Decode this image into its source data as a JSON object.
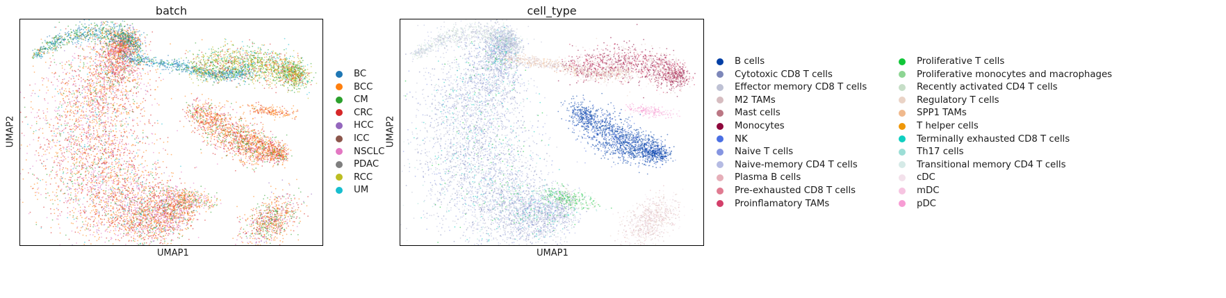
{
  "chart_data": [
    {
      "type": "scatter",
      "title": "batch",
      "xlabel": "UMAP1",
      "ylabel": "UMAP2",
      "grid": false,
      "ticks": false,
      "legend_position": "right",
      "categories": [
        {
          "name": "BC",
          "color": "#1f77b4"
        },
        {
          "name": "BCC",
          "color": "#ff7f0e"
        },
        {
          "name": "CM",
          "color": "#2ca02c"
        },
        {
          "name": "CRC",
          "color": "#d62728"
        },
        {
          "name": "HCC",
          "color": "#9467bd"
        },
        {
          "name": "ICC",
          "color": "#8c564b"
        },
        {
          "name": "NSCLC",
          "color": "#e377c2"
        },
        {
          "name": "PDAC",
          "color": "#7f7f7f"
        },
        {
          "name": "RCC",
          "color": "#bcbd22"
        },
        {
          "name": "UM",
          "color": "#17becf"
        }
      ]
    },
    {
      "type": "scatter",
      "title": "cell_type",
      "xlabel": "UMAP1",
      "ylabel": "UMAP2",
      "grid": false,
      "ticks": false,
      "legend_position": "right",
      "categories": [
        {
          "name": "B cells",
          "color": "#023fa5"
        },
        {
          "name": "Cytotoxic CD8 T cells",
          "color": "#7d87b9"
        },
        {
          "name": "Effector memory CD8 T cells",
          "color": "#bec1d4"
        },
        {
          "name": "M2 TAMs",
          "color": "#d6bcc0"
        },
        {
          "name": "Mast cells",
          "color": "#bb7784"
        },
        {
          "name": "Monocytes",
          "color": "#8e063b"
        },
        {
          "name": "NK",
          "color": "#4a6fe3"
        },
        {
          "name": "Naive T cells",
          "color": "#8595e1"
        },
        {
          "name": "Naive-memory CD4 T cells",
          "color": "#b5bbe3"
        },
        {
          "name": "Plasma B cells",
          "color": "#e6afb9"
        },
        {
          "name": "Pre-exhausted CD8 T cells",
          "color": "#e07b91"
        },
        {
          "name": "Proinflamatory TAMs",
          "color": "#d33f6a"
        },
        {
          "name": "Proliferative T cells",
          "color": "#11c638"
        },
        {
          "name": "Proliferative monocytes and macrophages",
          "color": "#8dd593"
        },
        {
          "name": "Recently activated CD4 T cells",
          "color": "#c6dec7"
        },
        {
          "name": "Regulatory T cells",
          "color": "#ead3c6"
        },
        {
          "name": "SPP1 TAMs",
          "color": "#f0b98d"
        },
        {
          "name": "T helper cells",
          "color": "#ef9708"
        },
        {
          "name": "Terminally exhausted CD8 T cells",
          "color": "#0fcfc0"
        },
        {
          "name": "Th17 cells",
          "color": "#9cded6"
        },
        {
          "name": "Transitional memory CD4 T cells",
          "color": "#d5eae7"
        },
        {
          "name": "cDC",
          "color": "#f3e1eb"
        },
        {
          "name": "mDC",
          "color": "#f6c4e1"
        },
        {
          "name": "pDC",
          "color": "#f79cd4"
        }
      ]
    }
  ]
}
